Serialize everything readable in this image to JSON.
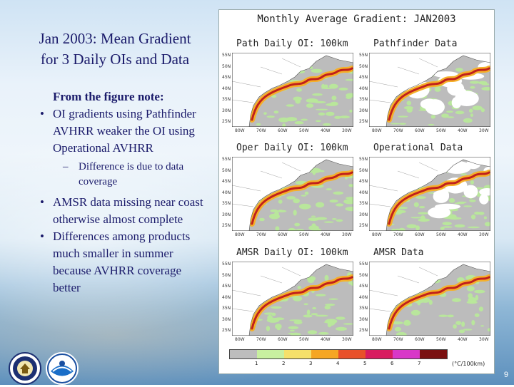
{
  "slide": {
    "title_line1": "Jan 2003:  Mean Gradient",
    "title_line2": "for 3 Daily OIs and Data",
    "note_heading": "From the figure note:",
    "bullet1": "OI gradients using Pathfinder AVHRR weaker the OI using Operational AVHRR",
    "sub1": "Difference is due to data coverage",
    "bullet2": "AMSR data missing near coast otherwise almost complete",
    "bullet3": "Differences among products much smaller in summer because AVHRR coverage better",
    "bullet_glyph": "•",
    "sub_glyph": "–",
    "page_number": "9"
  },
  "figure": {
    "title": "Monthly Average Gradient: JAN2003",
    "panels": [
      {
        "label": "Path Daily OI: 100km",
        "kind": "oi"
      },
      {
        "label": "Pathfinder Data",
        "kind": "data-sparse"
      },
      {
        "label": "Oper Daily OI: 100km",
        "kind": "oi"
      },
      {
        "label": "Operational Data",
        "kind": "data-sparse"
      },
      {
        "label": "AMSR Daily OI: 100km",
        "kind": "oi"
      },
      {
        "label": "AMSR Data",
        "kind": "data"
      }
    ],
    "lat_labels": [
      "55N",
      "50N",
      "45N",
      "40N",
      "35N",
      "30N",
      "25N"
    ],
    "lon_labels": [
      "80W",
      "70W",
      "60W",
      "50W",
      "40W",
      "30W"
    ],
    "colorbar": {
      "colors": [
        "#bdbdbd",
        "#c8f0a0",
        "#f5e06a",
        "#f5a623",
        "#e8502a",
        "#d81b60",
        "#d838c8",
        "#7a1010"
      ],
      "ticks": [
        "1",
        "2",
        "3",
        "4",
        "5",
        "6",
        "7"
      ],
      "unit": "(°C/100km)"
    },
    "colors": {
      "land": "#ffffff",
      "ocean": "#bcbcbc",
      "missing": "#ffffff",
      "green": "#b8e89a",
      "front_outer": "#f5b02a",
      "front_inner": "#c0201c"
    }
  },
  "logos": [
    {
      "name": "Department of Commerce seal"
    },
    {
      "name": "NOAA logo"
    }
  ]
}
